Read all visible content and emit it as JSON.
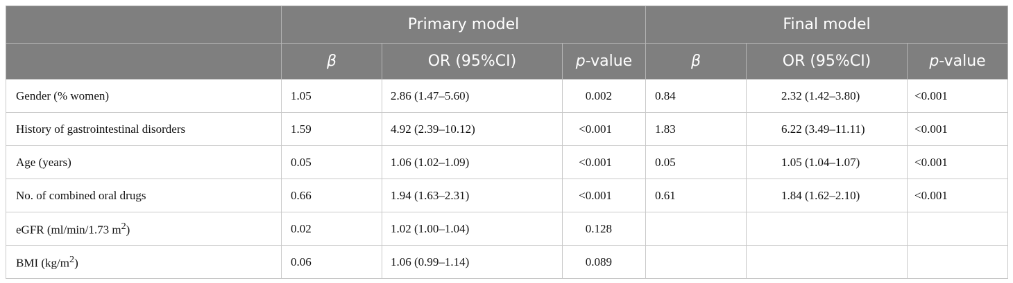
{
  "header": {
    "groups": [
      "Primary model",
      "Final model"
    ],
    "columns": {
      "beta": "β",
      "or": "OR (95%CI)",
      "p_italic": "p",
      "p_rest": "-value"
    }
  },
  "table": {
    "rows": [
      {
        "label": {
          "text": "Gender (% women)"
        },
        "primary": [
          "1.05",
          "2.86 (1.47–5.60)",
          "0.002"
        ],
        "final": [
          "0.84",
          "2.32 (1.42–3.80)",
          "<0.001"
        ]
      },
      {
        "label": {
          "text": "History of gastrointestinal disorders"
        },
        "primary": [
          "1.59",
          "4.92 (2.39–10.12)",
          "<0.001"
        ],
        "final": [
          "1.83",
          "6.22 (3.49–11.11)",
          "<0.001"
        ]
      },
      {
        "label": {
          "text": "Age (years)"
        },
        "primary": [
          "0.05",
          "1.06 (1.02–1.09)",
          "<0.001"
        ],
        "final": [
          "0.05",
          "1.05 (1.04–1.07)",
          "<0.001"
        ]
      },
      {
        "label": {
          "text": "No. of combined oral drugs"
        },
        "primary": [
          "0.66",
          "1.94 (1.63–2.31)",
          "<0.001"
        ],
        "final": [
          "0.61",
          "1.84 (1.62–2.10)",
          "<0.001"
        ]
      },
      {
        "label": {
          "text": "eGFR (ml/min/1.73 m",
          "sup": "2",
          "after": ")"
        },
        "primary": [
          "0.02",
          "1.02 (1.00–1.04)",
          "0.128"
        ]
      },
      {
        "label": {
          "text": "BMI (kg/m",
          "sup": "2",
          "after": ")"
        },
        "primary": [
          "0.06",
          "1.06 (0.99–1.14)",
          "0.089"
        ]
      }
    ]
  }
}
